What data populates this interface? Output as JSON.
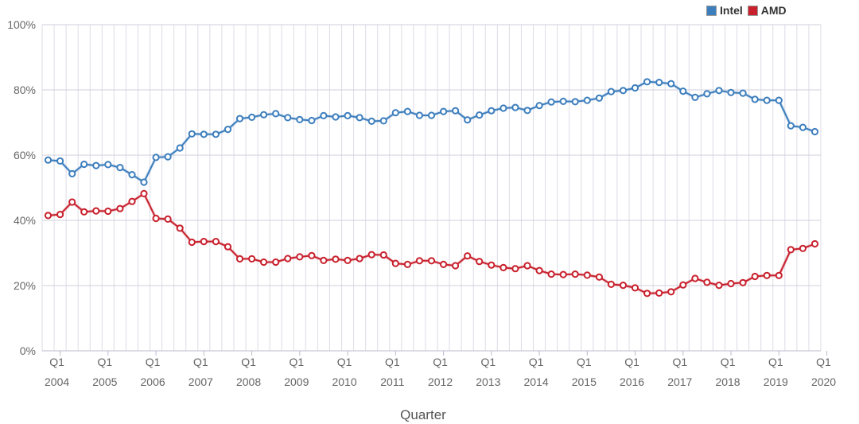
{
  "chart_data": {
    "type": "line",
    "legend_position": "top-right",
    "xlabel": "Quarter",
    "y_ticks": [
      "0%",
      "20%",
      "40%",
      "60%",
      "80%",
      "100%"
    ],
    "ylim": [
      0,
      100
    ],
    "grid": true,
    "x_tick_labels": [
      {
        "q": "Q1",
        "year": "2004"
      },
      {
        "q": "Q1",
        "year": "2005"
      },
      {
        "q": "Q1",
        "year": "2006"
      },
      {
        "q": "Q1",
        "year": "2007"
      },
      {
        "q": "Q1",
        "year": "2008"
      },
      {
        "q": "Q1",
        "year": "2009"
      },
      {
        "q": "Q1",
        "year": "2010"
      },
      {
        "q": "Q1",
        "year": "2011"
      },
      {
        "q": "Q1",
        "year": "2012"
      },
      {
        "q": "Q1",
        "year": "2013"
      },
      {
        "q": "Q1",
        "year": "2014"
      },
      {
        "q": "Q1",
        "year": "2015"
      },
      {
        "q": "Q1",
        "year": "2016"
      },
      {
        "q": "Q1",
        "year": "2017"
      },
      {
        "q": "Q1",
        "year": "2018"
      },
      {
        "q": "Q1",
        "year": "2019"
      },
      {
        "q": "Q1",
        "year": "2020"
      }
    ],
    "x_start": "2003 Q4",
    "series": [
      {
        "name": "Intel",
        "color": "#3d7ebd",
        "values": [
          58.5,
          58.2,
          54.3,
          57.2,
          56.8,
          57.1,
          56.2,
          54.0,
          51.7,
          59.3,
          59.5,
          62.2,
          66.5,
          66.4,
          66.4,
          67.9,
          71.2,
          71.6,
          72.4,
          72.7,
          71.5,
          70.9,
          70.6,
          72.1,
          71.7,
          72.1,
          71.5,
          70.4,
          70.5,
          73.0,
          73.4,
          72.2,
          72.2,
          73.4,
          73.6,
          70.8,
          72.3,
          73.6,
          74.4,
          74.6,
          73.7,
          75.2,
          76.3,
          76.5,
          76.4,
          76.8,
          77.5,
          79.5,
          79.8,
          80.6,
          82.5,
          82.3,
          81.9,
          79.6,
          77.7,
          78.8,
          79.8,
          79.2,
          79.0,
          77.1,
          76.8,
          76.8,
          69.0,
          68.5,
          67.2
        ]
      },
      {
        "name": "AMD",
        "color": "#c8202d",
        "values": [
          41.5,
          41.8,
          45.6,
          42.6,
          42.9,
          42.8,
          43.6,
          45.8,
          48.2,
          40.6,
          40.4,
          37.6,
          33.3,
          33.5,
          33.5,
          31.9,
          28.2,
          28.2,
          27.2,
          27.2,
          28.3,
          28.8,
          29.2,
          27.7,
          28.1,
          27.7,
          28.3,
          29.5,
          29.4,
          26.8,
          26.5,
          27.6,
          27.6,
          26.5,
          26.1,
          29.1,
          27.4,
          26.3,
          25.5,
          25.2,
          26.1,
          24.6,
          23.5,
          23.4,
          23.5,
          23.2,
          22.6,
          20.4,
          20.1,
          19.3,
          17.6,
          17.7,
          18.1,
          20.2,
          22.2,
          21.0,
          20.1,
          20.6,
          20.9,
          22.8,
          23.1,
          23.1,
          31.0,
          31.4,
          32.8
        ]
      }
    ]
  }
}
